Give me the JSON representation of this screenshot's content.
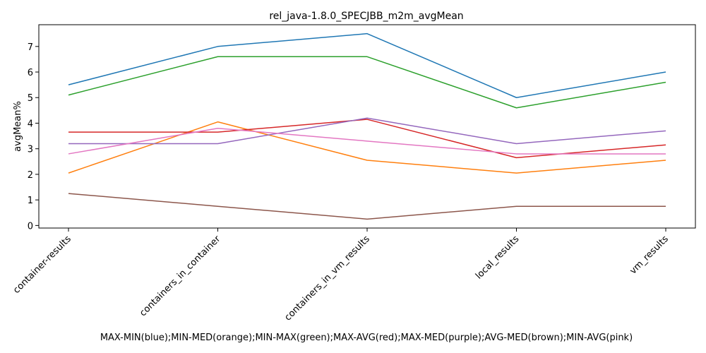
{
  "chart_data": {
    "type": "line",
    "title": "rel_java-1.8.0_SPECJBB_m2m_avgMean",
    "xlabel": "MAX-MIN(blue);MIN-MED(orange);MIN-MAX(green);MAX-AVG(red);MAX-MED(purple);AVG-MED(brown);MIN-AVG(pink)",
    "ylabel": "avgMean%",
    "categories": [
      "container-results",
      "containers_in_container",
      "containers_in_vm_results",
      "local_results",
      "vm_results"
    ],
    "ylim": [
      -0.1,
      7.85
    ],
    "yticks": [
      0,
      1,
      2,
      3,
      4,
      5,
      6,
      7
    ],
    "grid": false,
    "series": [
      {
        "color": "#1f77b4",
        "values": [
          5.5,
          7.0,
          7.5,
          5.0,
          6.0
        ]
      },
      {
        "color": "#ff7f0e",
        "values": [
          2.05,
          4.05,
          2.55,
          2.05,
          2.55
        ]
      },
      {
        "color": "#2ca02c",
        "values": [
          5.1,
          6.6,
          6.6,
          4.6,
          5.6
        ]
      },
      {
        "color": "#d62728",
        "values": [
          3.65,
          3.65,
          4.15,
          2.65,
          3.15
        ]
      },
      {
        "color": "#9467bd",
        "values": [
          3.2,
          3.2,
          4.2,
          3.2,
          3.7
        ]
      },
      {
        "color": "#8c564b",
        "values": [
          1.25,
          0.75,
          0.25,
          0.75,
          0.75
        ]
      },
      {
        "color": "#e377c2",
        "values": [
          2.8,
          3.8,
          3.3,
          2.8,
          2.8
        ]
      }
    ]
  }
}
